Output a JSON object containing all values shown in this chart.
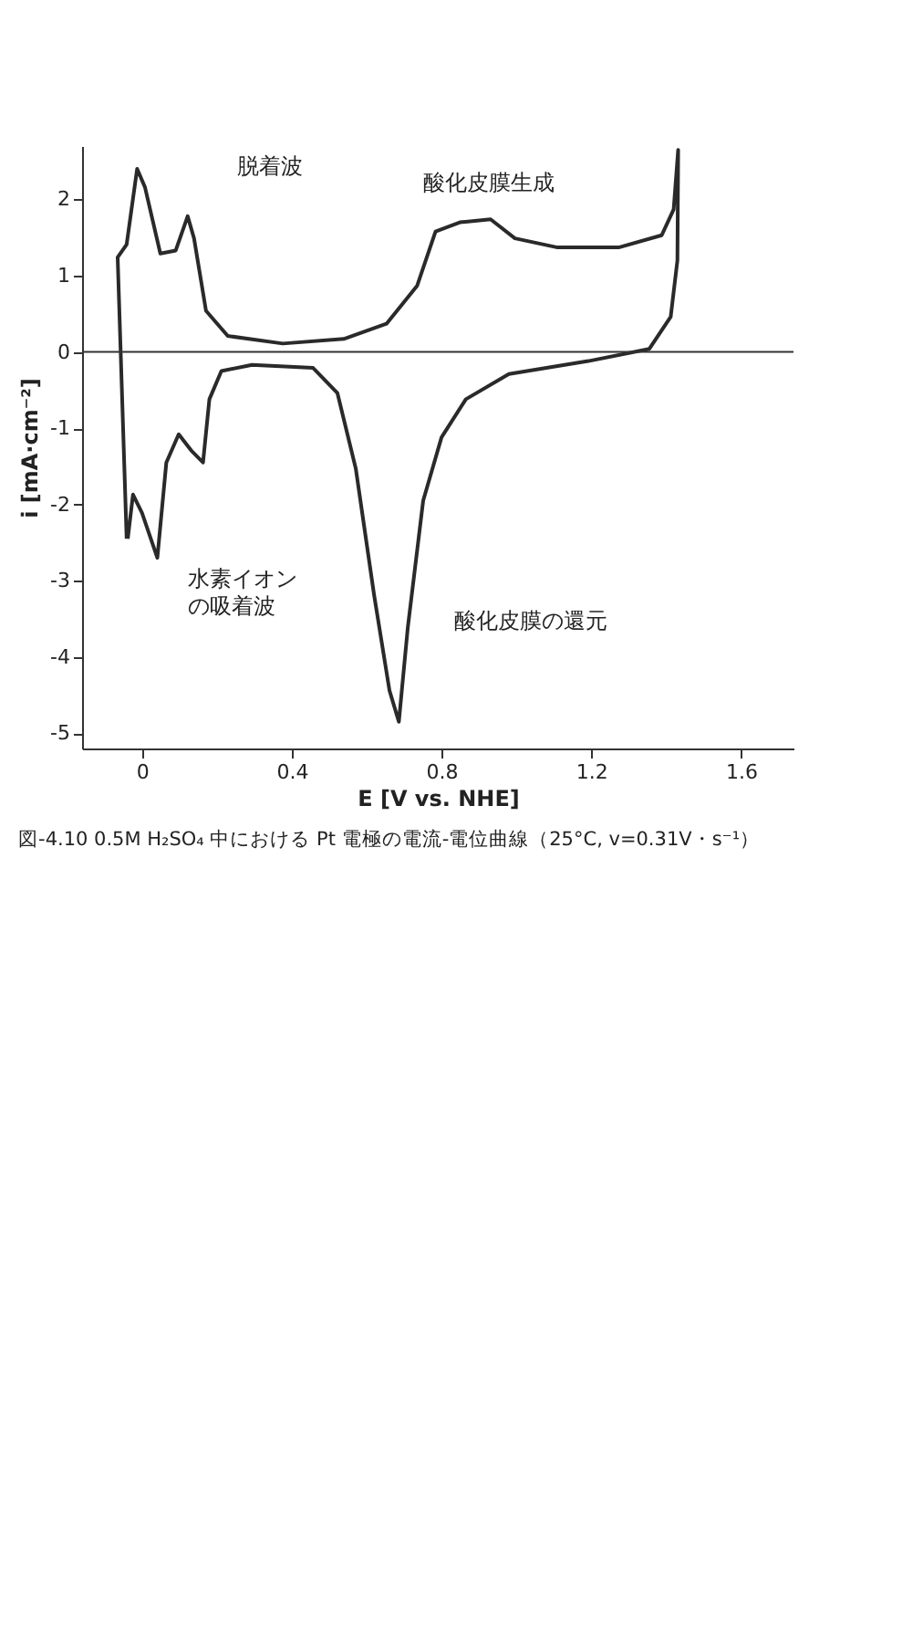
{
  "chart_data": {
    "type": "line",
    "title": "図-4.10 0.5M H₂SO₄ 中における Pt 電極の電流-電位曲線（25°C, v=0.31V・s⁻¹）",
    "xlabel": "E [V vs. NHE]",
    "ylabel": "i [mA·cm⁻²]",
    "series": [
      {
        "color": "#2a2a2a",
        "x": [
          -0.041,
          -0.065,
          -0.041,
          -0.013,
          0.008,
          0.049,
          0.09,
          0.122,
          0.139,
          0.171,
          0.229,
          0.376,
          0.539,
          0.653,
          0.735,
          0.784,
          0.849,
          0.931,
          0.996,
          1.11,
          1.273,
          1.388,
          1.42,
          1.432,
          1.43,
          1.412,
          1.355,
          1.192,
          0.98,
          0.865,
          0.8,
          0.751,
          0.71,
          0.686,
          0.661,
          0.62,
          0.571,
          0.522,
          0.457,
          0.294,
          0.212,
          0.18,
          0.163,
          0.131,
          0.098,
          0.065,
          0.041,
          0.0,
          -0.024,
          -0.038
        ],
        "values": [
          -2.45,
          1.24,
          1.41,
          2.4,
          2.16,
          1.29,
          1.33,
          1.78,
          1.49,
          0.54,
          0.21,
          0.11,
          0.17,
          0.37,
          0.87,
          1.58,
          1.7,
          1.74,
          1.49,
          1.37,
          1.37,
          1.53,
          1.87,
          2.65,
          1.2,
          0.46,
          0.04,
          -0.12,
          -0.29,
          -0.62,
          -1.12,
          -1.95,
          -3.61,
          -4.85,
          -4.44,
          -3.19,
          -1.53,
          -0.54,
          -0.21,
          -0.17,
          -0.25,
          -0.62,
          -1.45,
          -1.29,
          -1.08,
          -1.45,
          -2.7,
          -2.11,
          -1.87,
          -2.45
        ]
      }
    ],
    "xlim": [
      -0.16,
      1.74
    ],
    "xticks": [
      0,
      0.4,
      0.8,
      1.2,
      1.6
    ],
    "ylim": [
      -5.2,
      2.7
    ],
    "yticks": [
      2,
      1,
      0,
      -1,
      -2,
      -3,
      -4,
      -5
    ],
    "ref_lines": [
      {
        "axis": "y",
        "value": 0
      }
    ],
    "annotations": [
      "脱着波",
      "酸化皮膜生成",
      "水素イオンの吸着波",
      "酸化皮膜の還元"
    ],
    "grid": false,
    "marker": "none",
    "line_style": "solid"
  }
}
